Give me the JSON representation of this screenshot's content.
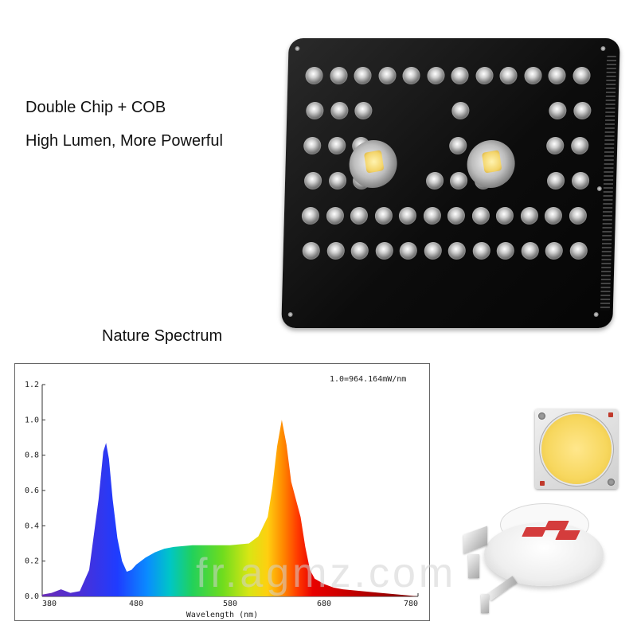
{
  "headline": {
    "line1": "Double Chip + COB",
    "line2": "High Lumen, More Powerful"
  },
  "spectrum": {
    "title": "Nature Spectrum"
  },
  "watermark": "fr.agmz.com",
  "product_images": {
    "panel": "led-grow-light-panel",
    "chip": "cob-chip",
    "smd": "smd-led-diagram"
  },
  "chart_data": {
    "type": "area",
    "annotation": "1.0=964.164mW/nm",
    "xlabel": "Wavelength (nm)",
    "ylabel": "",
    "xlim": [
      380,
      780
    ],
    "ylim": [
      0,
      1.2
    ],
    "x_ticks": [
      "380",
      "480",
      "580",
      "680",
      "780"
    ],
    "y_ticks": [
      "0.0",
      "0.2",
      "0.4",
      "0.6",
      "0.8",
      "1.0",
      "1.2"
    ],
    "grid": false,
    "fill": "visible-spectrum-gradient",
    "series": [
      {
        "x": [
          380,
          390,
          400,
          405,
          410,
          420,
          430,
          440,
          445,
          448,
          451,
          455,
          460,
          465,
          470,
          475,
          480,
          490,
          500,
          510,
          520,
          540,
          560,
          580,
          600,
          610,
          620,
          625,
          630,
          635,
          640,
          645,
          650,
          655,
          660,
          665,
          670,
          680,
          690,
          700,
          720,
          740,
          760,
          780
        ],
        "y": [
          0.01,
          0.02,
          0.04,
          0.03,
          0.02,
          0.03,
          0.15,
          0.55,
          0.82,
          0.87,
          0.78,
          0.55,
          0.33,
          0.2,
          0.14,
          0.15,
          0.18,
          0.22,
          0.25,
          0.27,
          0.28,
          0.29,
          0.29,
          0.29,
          0.3,
          0.34,
          0.45,
          0.62,
          0.85,
          1.0,
          0.86,
          0.65,
          0.55,
          0.45,
          0.28,
          0.15,
          0.1,
          0.07,
          0.05,
          0.04,
          0.03,
          0.02,
          0.01,
          0.0
        ]
      }
    ]
  }
}
